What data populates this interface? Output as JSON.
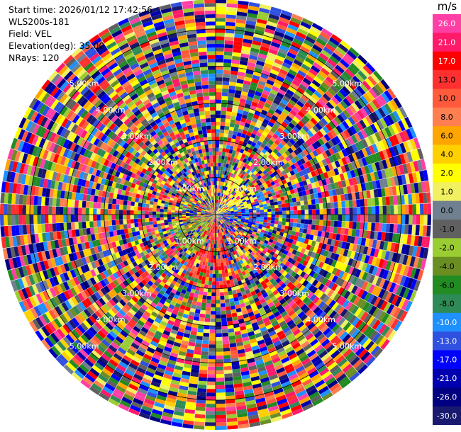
{
  "header": {
    "start_time": "Start time: 2026/01/12 17:42:56",
    "instrument": "WLS200s-181",
    "field": "Field: VEL",
    "elevation": "Elevation(deg): 35.00",
    "nrays": "NRays: 120"
  },
  "colorbar": {
    "unit": "m/s",
    "entries": [
      {
        "label": "26.0",
        "color": "#ff3fa6"
      },
      {
        "label": "21.0",
        "color": "#ff1a6a"
      },
      {
        "label": "17.0",
        "color": "#ff0000"
      },
      {
        "label": "13.0",
        "color": "#ff3030"
      },
      {
        "label": "10.0",
        "color": "#ff5a3c"
      },
      {
        "label": "8.0",
        "color": "#ff7f50"
      },
      {
        "label": "6.0",
        "color": "#ffa500"
      },
      {
        "label": "4.0",
        "color": "#ffd000"
      },
      {
        "label": "2.0",
        "color": "#ffff00"
      },
      {
        "label": "1.0",
        "color": "#f0f060"
      },
      {
        "label": "0.0",
        "color": "#708090"
      },
      {
        "label": "-1.0",
        "color": "#606060"
      },
      {
        "label": "-2.0",
        "color": "#9acd32"
      },
      {
        "label": "-4.0",
        "color": "#6b8e23"
      },
      {
        "label": "-6.0",
        "color": "#228b22"
      },
      {
        "label": "-8.0",
        "color": "#2e8b57"
      },
      {
        "label": "-10.0",
        "color": "#1e90ff"
      },
      {
        "label": "-13.0",
        "color": "#3050e0"
      },
      {
        "label": "-17.0",
        "color": "#0000ff"
      },
      {
        "label": "-21.0",
        "color": "#0000b0"
      },
      {
        "label": "-26.0",
        "color": "#000080"
      },
      {
        "label": "-30.0",
        "color": "#191970"
      }
    ]
  },
  "chart_data": {
    "type": "heatmap",
    "projection": "polar PPI",
    "field": "VEL",
    "elevation_deg": 35.0,
    "n_rays": 120,
    "range_rings_km": [
      1.0,
      2.0,
      3.0,
      4.0,
      5.0
    ],
    "ring_label_format": "{r}.00km",
    "ring_labels": [
      "1.00km",
      "2.00km",
      "3.00km",
      "4.00km",
      "5.00km"
    ],
    "max_range_km": 5.8,
    "value_range": [
      -30.0,
      26.0
    ],
    "note_pattern": "near-random velocity values across all range gates"
  }
}
